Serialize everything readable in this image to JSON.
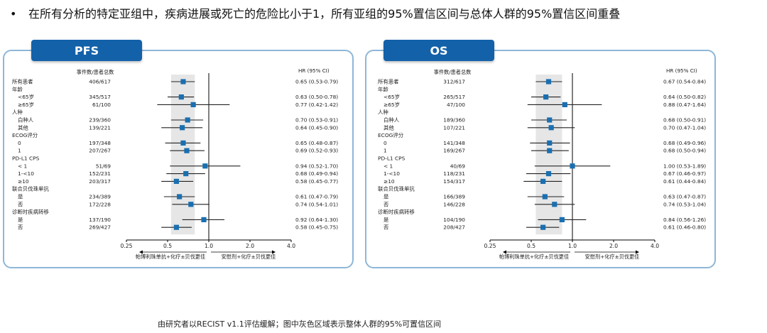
{
  "headline": {
    "bullet": "•",
    "text": "在所有分析的特定亚组中，疾病进展或死亡的危险比小于1，所有亚组的95%置信区间与总体人群的95%置信区间重叠"
  },
  "footnote": "由研究者以RECIST v1.1评估缓解；图中灰色区域表示整体人群的95%可置信区间",
  "colors": {
    "accent": "#1361a9",
    "marker": "#1a6fb0",
    "panel_border": "#8eb6d8",
    "shade": "#e6e6e6"
  },
  "chart_data": [
    {
      "type": "forest",
      "title": "PFS",
      "col_events_header": "事件数/患者总数",
      "col_hr_header": "HR (95% CI)",
      "x_scale": "log",
      "xlim": [
        0.25,
        4.0
      ],
      "ticks": [
        "0.25",
        "0.5",
        "1.0",
        "2.0",
        "4.0"
      ],
      "reference": 1.0,
      "overall_ci": [
        0.53,
        0.79
      ],
      "left_label": "帕博利珠单抗+化疗±贝伐更佳",
      "right_label": "安慰剂+化疗±贝伐更佳",
      "rows": [
        {
          "label": "所有患者",
          "indent": false,
          "events": "406/617",
          "hr": 0.65,
          "lo": 0.53,
          "hi": 0.79,
          "hr_text": "0.65 (0.53-0.79)"
        },
        {
          "label": "年龄",
          "indent": false,
          "header": true
        },
        {
          "label": "<65岁",
          "indent": true,
          "events": "345/517",
          "hr": 0.63,
          "lo": 0.5,
          "hi": 0.78,
          "hr_text": "0.63 (0.50-0.78)"
        },
        {
          "label": "≥65岁",
          "indent": true,
          "events": "61/100",
          "hr": 0.77,
          "lo": 0.42,
          "hi": 1.42,
          "hr_text": "0.77 (0.42-1.42)"
        },
        {
          "label": "人种",
          "indent": false,
          "header": true
        },
        {
          "label": "白种人",
          "indent": true,
          "events": "239/360",
          "hr": 0.7,
          "lo": 0.53,
          "hi": 0.91,
          "hr_text": "0.70 (0.53-0.91)"
        },
        {
          "label": "其他",
          "indent": true,
          "events": "139/221",
          "hr": 0.64,
          "lo": 0.45,
          "hi": 0.9,
          "hr_text": "0.64 (0.45-0.90)"
        },
        {
          "label": "ECOG评分",
          "indent": false,
          "header": true
        },
        {
          "label": "0",
          "indent": true,
          "events": "197/348",
          "hr": 0.65,
          "lo": 0.48,
          "hi": 0.87,
          "hr_text": "0.65 (0.48-0.87)"
        },
        {
          "label": "1",
          "indent": true,
          "events": "207/267",
          "hr": 0.69,
          "lo": 0.52,
          "hi": 0.93,
          "hr_text": "0.69 (0.52-0.93)"
        },
        {
          "label": "PD-L1 CPS",
          "indent": false,
          "header": true
        },
        {
          "label": "< 1",
          "indent": true,
          "events": "51/69",
          "hr": 0.94,
          "lo": 0.52,
          "hi": 1.7,
          "hr_text": "0.94 (0.52-1.70)"
        },
        {
          "label": "1-<10",
          "indent": true,
          "events": "152/231",
          "hr": 0.68,
          "lo": 0.49,
          "hi": 0.94,
          "hr_text": "0.68 (0.49-0.94)"
        },
        {
          "label": "≥10",
          "indent": true,
          "events": "203/317",
          "hr": 0.58,
          "lo": 0.45,
          "hi": 0.77,
          "hr_text": "0.58 (0.45-0.77)"
        },
        {
          "label": "联合贝伐珠单抗",
          "indent": false,
          "header": true
        },
        {
          "label": "是",
          "indent": true,
          "events": "234/389",
          "hr": 0.61,
          "lo": 0.47,
          "hi": 0.79,
          "hr_text": "0.61 (0.47-0.79)"
        },
        {
          "label": "否",
          "indent": true,
          "events": "172/228",
          "hr": 0.74,
          "lo": 0.54,
          "hi": 1.01,
          "hr_text": "0.74 (0.54-1.01)"
        },
        {
          "label": "诊断时疾病转移",
          "indent": false,
          "header": true
        },
        {
          "label": "是",
          "indent": true,
          "events": "137/190",
          "hr": 0.92,
          "lo": 0.64,
          "hi": 1.3,
          "hr_text": "0.92 (0.64-1.30)"
        },
        {
          "label": "否",
          "indent": true,
          "events": "269/427",
          "hr": 0.58,
          "lo": 0.45,
          "hi": 0.75,
          "hr_text": "0.58 (0.45-0.75)"
        }
      ]
    },
    {
      "type": "forest",
      "title": "OS",
      "col_events_header": "事件数/患者总数",
      "col_hr_header": "HR (95% CI)",
      "x_scale": "log",
      "xlim": [
        0.25,
        4.0
      ],
      "ticks": [
        "0.25",
        "0.5",
        "1.0",
        "2.0",
        "4.0"
      ],
      "reference": 1.0,
      "overall_ci": [
        0.54,
        0.84
      ],
      "left_label": "帕博利珠单抗+化疗±贝伐更佳",
      "right_label": "安慰剂+化疗±贝伐更佳",
      "rows": [
        {
          "label": "所有患者",
          "indent": false,
          "events": "312/617",
          "hr": 0.67,
          "lo": 0.54,
          "hi": 0.84,
          "hr_text": "0.67 (0.54-0.84)"
        },
        {
          "label": "年龄",
          "indent": false,
          "header": true
        },
        {
          "label": "<65岁",
          "indent": true,
          "events": "265/517",
          "hr": 0.64,
          "lo": 0.5,
          "hi": 0.82,
          "hr_text": "0.64 (0.50-0.82)"
        },
        {
          "label": "≥65岁",
          "indent": true,
          "events": "47/100",
          "hr": 0.88,
          "lo": 0.47,
          "hi": 1.64,
          "hr_text": "0.88 (0.47-1.64)"
        },
        {
          "label": "人种",
          "indent": false,
          "header": true
        },
        {
          "label": "白种人",
          "indent": true,
          "events": "189/360",
          "hr": 0.68,
          "lo": 0.5,
          "hi": 0.91,
          "hr_text": "0.68 (0.50-0.91)"
        },
        {
          "label": "其他",
          "indent": true,
          "events": "107/221",
          "hr": 0.7,
          "lo": 0.47,
          "hi": 1.04,
          "hr_text": "0.70 (0.47-1.04)"
        },
        {
          "label": "ECOG评分",
          "indent": false,
          "header": true
        },
        {
          "label": "0",
          "indent": true,
          "events": "141/348",
          "hr": 0.68,
          "lo": 0.49,
          "hi": 0.96,
          "hr_text": "0.68 (0.49-0.96)"
        },
        {
          "label": "1",
          "indent": true,
          "events": "169/267",
          "hr": 0.68,
          "lo": 0.5,
          "hi": 0.94,
          "hr_text": "0.68 (0.50-0.94)"
        },
        {
          "label": "PD-L1 CPS",
          "indent": false,
          "header": true
        },
        {
          "label": "< 1",
          "indent": true,
          "events": "40/69",
          "hr": 1.0,
          "lo": 0.53,
          "hi": 1.89,
          "hr_text": "1.00 (0.53-1.89)"
        },
        {
          "label": "1-<10",
          "indent": true,
          "events": "118/231",
          "hr": 0.67,
          "lo": 0.46,
          "hi": 0.97,
          "hr_text": "0.67 (0.46-0.97)"
        },
        {
          "label": "≥10",
          "indent": true,
          "events": "154/317",
          "hr": 0.61,
          "lo": 0.44,
          "hi": 0.84,
          "hr_text": "0.61 (0.44-0.84)"
        },
        {
          "label": "联合贝伐珠单抗",
          "indent": false,
          "header": true
        },
        {
          "label": "是",
          "indent": true,
          "events": "166/389",
          "hr": 0.63,
          "lo": 0.47,
          "hi": 0.87,
          "hr_text": "0.63 (0.47-0.87)"
        },
        {
          "label": "否",
          "indent": true,
          "events": "146/228",
          "hr": 0.74,
          "lo": 0.53,
          "hi": 1.04,
          "hr_text": "0.74 (0.53-1.04)"
        },
        {
          "label": "诊断时疾病转移",
          "indent": false,
          "header": true
        },
        {
          "label": "是",
          "indent": true,
          "events": "104/190",
          "hr": 0.84,
          "lo": 0.56,
          "hi": 1.26,
          "hr_text": "0.84 (0.56-1.26)"
        },
        {
          "label": "否",
          "indent": true,
          "events": "208/427",
          "hr": 0.61,
          "lo": 0.46,
          "hi": 0.8,
          "hr_text": "0.61 (0.46-0.80)"
        }
      ]
    }
  ]
}
